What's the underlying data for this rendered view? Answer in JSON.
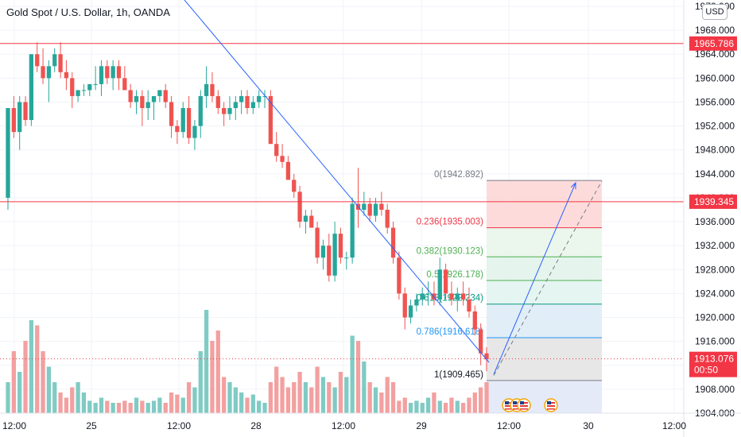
{
  "header": {
    "title": "Gold Spot / U.S. Dollar, 1h, OANDA",
    "currency_badge": "USD"
  },
  "chart_data": {
    "type": "candlestick",
    "symbol": "Gold Spot / U.S. Dollar",
    "timeframe": "1h",
    "source": "OANDA",
    "ylim": [
      1904,
      1972
    ],
    "y_ticks": [
      "1904.000",
      "1908.000",
      "1912.000",
      "1916.000",
      "1920.000",
      "1924.000",
      "1928.000",
      "1932.000",
      "1936.000",
      "1940.000",
      "1944.000",
      "1948.000",
      "1952.000",
      "1956.000",
      "1960.000",
      "1964.000",
      "1968.000",
      "1972.000"
    ],
    "x_tick_labels": [
      "12:00",
      "25",
      "12:00",
      "28",
      "12:00",
      "29",
      "12:00",
      "30",
      "12:00"
    ],
    "colors": {
      "up": "#26a69a",
      "down": "#ef5350",
      "up_volume": "#80cbc4",
      "down_volume": "#f3a0a0",
      "trendline": "#2962ff",
      "horizontal_line": "#f23645"
    },
    "candles": [
      [
        1940,
        1955,
        1938,
        1955
      ],
      [
        1955,
        1957,
        1950,
        1951
      ],
      [
        1951,
        1957,
        1948,
        1956
      ],
      [
        1956,
        1957,
        1952,
        1953
      ],
      [
        1953,
        1964,
        1952,
        1964
      ],
      [
        1964,
        1966,
        1961,
        1962
      ],
      [
        1962,
        1965,
        1959,
        1960
      ],
      [
        1960,
        1963,
        1956,
        1962
      ],
      [
        1962,
        1965,
        1961,
        1964
      ],
      [
        1964,
        1966,
        1960,
        1961
      ],
      [
        1961,
        1963,
        1958,
        1960
      ],
      [
        1960,
        1961,
        1955,
        1957
      ],
      [
        1957,
        1958,
        1956,
        1958
      ],
      [
        1958,
        1959,
        1957,
        1958
      ],
      [
        1958,
        1959,
        1957,
        1959
      ],
      [
        1959,
        1962,
        1958,
        1959
      ],
      [
        1959,
        1963,
        1957,
        1962
      ],
      [
        1962,
        1963,
        1959,
        1960
      ],
      [
        1960,
        1963,
        1958,
        1962
      ],
      [
        1962,
        1963,
        1958,
        1960
      ],
      [
        1960,
        1962,
        1958,
        1958
      ],
      [
        1958,
        1959,
        1955,
        1956
      ],
      [
        1956,
        1958,
        1954,
        1957
      ],
      [
        1957,
        1958,
        1952,
        1955
      ],
      [
        1955,
        1958,
        1953,
        1956
      ],
      [
        1956,
        1957,
        1953,
        1957
      ],
      [
        1957,
        1958,
        1956,
        1958
      ],
      [
        1958,
        1959,
        1955,
        1956
      ],
      [
        1956,
        1957,
        1950,
        1952
      ],
      [
        1952,
        1953,
        1949,
        1951
      ],
      [
        1951,
        1956,
        1950,
        1955
      ],
      [
        1955,
        1957,
        1949,
        1950
      ],
      [
        1950,
        1953,
        1948,
        1952
      ],
      [
        1952,
        1958,
        1950,
        1957
      ],
      [
        1957,
        1962,
        1955,
        1959
      ],
      [
        1959,
        1961,
        1956,
        1957
      ],
      [
        1957,
        1958,
        1954,
        1955
      ],
      [
        1955,
        1956,
        1952,
        1954
      ],
      [
        1954,
        1957,
        1953,
        1955
      ],
      [
        1955,
        1957,
        1953,
        1956
      ],
      [
        1956,
        1958,
        1954,
        1957
      ],
      [
        1957,
        1958,
        1954,
        1955
      ],
      [
        1955,
        1957,
        1954,
        1956
      ],
      [
        1956,
        1958,
        1955,
        1957
      ],
      [
        1957,
        1958,
        1955,
        1957
      ],
      [
        1957,
        1958,
        1949,
        1949
      ],
      [
        1949,
        1951,
        1946,
        1947
      ],
      [
        1947,
        1949,
        1945,
        1946
      ],
      [
        1946,
        1947,
        1943,
        1943
      ],
      [
        1943,
        1944,
        1940,
        1941
      ],
      [
        1941,
        1942,
        1935,
        1936
      ],
      [
        1936,
        1938,
        1934,
        1937
      ],
      [
        1937,
        1938,
        1935,
        1935
      ],
      [
        1935,
        1936,
        1929,
        1930
      ],
      [
        1930,
        1933,
        1928,
        1932
      ],
      [
        1932,
        1934,
        1926,
        1927
      ],
      [
        1927,
        1936,
        1926,
        1934
      ],
      [
        1934,
        1935,
        1929,
        1930
      ],
      [
        1930,
        1931,
        1928,
        1930
      ],
      [
        1930,
        1940,
        1929,
        1939
      ],
      [
        1939,
        1945,
        1935,
        1938
      ],
      [
        1938,
        1941,
        1937,
        1939
      ],
      [
        1939,
        1940,
        1936,
        1937
      ],
      [
        1937,
        1940,
        1936,
        1939
      ],
      [
        1939,
        1941,
        1937,
        1938
      ],
      [
        1938,
        1939,
        1934,
        1935
      ],
      [
        1935,
        1936,
        1929,
        1930
      ],
      [
        1930,
        1931,
        1923,
        1924
      ],
      [
        1924,
        1925,
        1918,
        1920
      ],
      [
        1920,
        1923,
        1919,
        1922
      ],
      [
        1922,
        1924,
        1921,
        1923
      ],
      [
        1923,
        1925,
        1922,
        1924
      ],
      [
        1924,
        1926,
        1922,
        1924
      ],
      [
        1924,
        1926,
        1922,
        1923
      ],
      [
        1923,
        1930,
        1922,
        1928
      ],
      [
        1928,
        1929,
        1923,
        1924
      ],
      [
        1924,
        1926,
        1922,
        1923
      ],
      [
        1923,
        1925,
        1921,
        1924
      ],
      [
        1924,
        1926,
        1922,
        1923
      ],
      [
        1923,
        1925,
        1920,
        1921
      ],
      [
        1921,
        1922,
        1917,
        1918
      ],
      [
        1918,
        1919,
        1912,
        1914
      ],
      [
        1914,
        1915,
        1911,
        1913
      ]
    ],
    "volume_relative": [
      0.3,
      0.6,
      0.4,
      0.7,
      0.9,
      0.85,
      0.6,
      0.45,
      0.3,
      0.2,
      0.15,
      0.25,
      0.3,
      0.2,
      0.12,
      0.1,
      0.15,
      0.12,
      0.1,
      0.1,
      0.12,
      0.1,
      0.15,
      0.12,
      0.1,
      0.12,
      0.15,
      0.1,
      0.2,
      0.18,
      0.15,
      0.3,
      0.25,
      0.6,
      1.0,
      0.7,
      0.8,
      0.35,
      0.3,
      0.25,
      0.2,
      0.15,
      0.18,
      0.12,
      0.1,
      0.3,
      0.45,
      0.35,
      0.25,
      0.3,
      0.4,
      0.3,
      0.25,
      0.45,
      0.35,
      0.3,
      0.25,
      0.4,
      0.35,
      0.75,
      0.7,
      0.5,
      0.3,
      0.25,
      0.2,
      0.35,
      0.3,
      0.12,
      0.15,
      0.1,
      0.12,
      0.1,
      0.15,
      0.2,
      0.12,
      0.1,
      0.15,
      0.12,
      0.1,
      0.15,
      0.2,
      0.25,
      0.3
    ],
    "horizontal_levels": [
      {
        "price": 1965.786,
        "label": "1965.786"
      },
      {
        "price": 1939.345,
        "label": "1939.345"
      }
    ],
    "current_price": {
      "price": 1913.076,
      "label": "1913.076",
      "countdown": "00:50"
    },
    "fibonacci": {
      "levels": [
        {
          "ratio": 0,
          "price": 1942.892,
          "label": "0(1942.892)"
        },
        {
          "ratio": 0.236,
          "price": 1935.003,
          "label": "0.236(1935.003)"
        },
        {
          "ratio": 0.382,
          "price": 1930.123,
          "label": "0.382(1930.123)"
        },
        {
          "ratio": 0.5,
          "price": 1926.178,
          "label": "0.5(1926.178)"
        },
        {
          "ratio": 0.618,
          "price": 1922.234,
          "label": "0.618(1922.234)"
        },
        {
          "ratio": 0.786,
          "price": 1916.618,
          "label": "0.786(1916.618)"
        },
        {
          "ratio": 1,
          "price": 1909.465,
          "label": "1(1909.465)"
        }
      ],
      "zone_colors": [
        "#fdd5d5",
        "#e8f5e9",
        "#e0f2e9",
        "#e1f3ef",
        "#dcebf7",
        "#e3e3e3",
        "#dfe6f7"
      ],
      "line_colors": [
        "#787b86",
        "#f23645",
        "#4caf50",
        "#4caf50",
        "#089981",
        "#2196f3",
        "#787b86"
      ],
      "label_colors": [
        "#787b86",
        "#f23645",
        "#4caf50",
        "#4caf50",
        "#089981",
        "#2196f3",
        "#131722"
      ]
    },
    "projection_arrow_end": 1942.5,
    "dashed_projection_end": 1942.8,
    "event_markers": [
      "us-flag",
      "us-flag",
      "us-flag",
      "us-flag"
    ]
  }
}
